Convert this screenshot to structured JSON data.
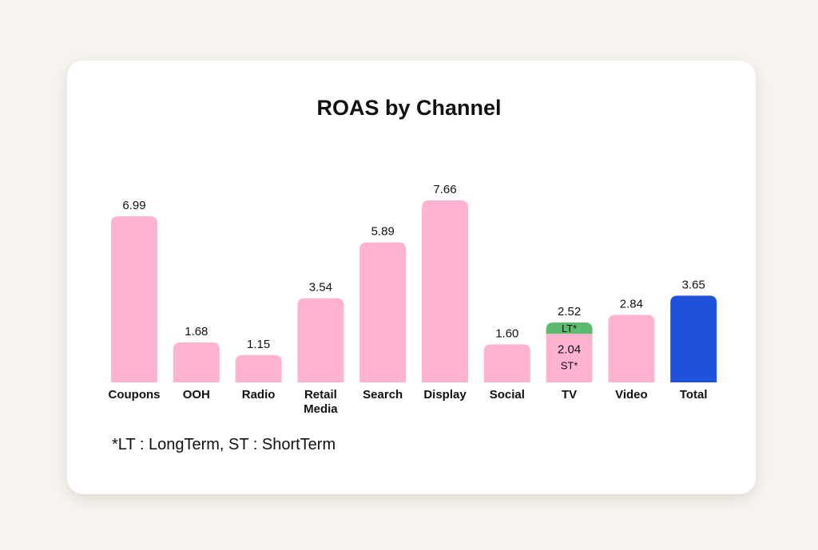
{
  "chart_data": {
    "type": "bar",
    "title": "ROAS by Channel",
    "xlabel": "",
    "ylabel": "",
    "ylim": [
      0,
      7.66
    ],
    "grid": false,
    "categories": [
      {
        "label": [
          "Coupons"
        ],
        "value": 6.99,
        "value_label": "6.99",
        "color": "#ffb3d1"
      },
      {
        "label": [
          "OOH"
        ],
        "value": 1.68,
        "value_label": "1.68",
        "color": "#ffb3d1"
      },
      {
        "label": [
          "Radio"
        ],
        "value": 1.15,
        "value_label": "1.15",
        "color": "#ffb3d1"
      },
      {
        "label": [
          "Retail",
          "Media"
        ],
        "value": 3.54,
        "value_label": "3.54",
        "color": "#ffb3d1"
      },
      {
        "label": [
          "Search"
        ],
        "value": 5.89,
        "value_label": "5.89",
        "color": "#ffb3d1"
      },
      {
        "label": [
          "Display"
        ],
        "value": 7.66,
        "value_label": "7.66",
        "color": "#ffb3d1"
      },
      {
        "label": [
          "Social"
        ],
        "value": 1.6,
        "value_label": "1.60",
        "color": "#ffb3d1"
      },
      {
        "label": [
          "TV"
        ],
        "value": 2.52,
        "value_label": "2.52",
        "color": "#ffb3d1",
        "segments": [
          {
            "label": "ST*",
            "value": 2.04,
            "value_label": "2.04",
            "color": "#ffb3d1"
          },
          {
            "label": "LT*",
            "value": 0.48,
            "color": "#5dbb6f"
          }
        ]
      },
      {
        "label": [
          "Video"
        ],
        "value": 2.84,
        "value_label": "2.84",
        "color": "#ffb3d1"
      },
      {
        "label": [
          "Total"
        ],
        "value": 3.65,
        "value_label": "3.65",
        "color": "#2150d9"
      }
    ]
  },
  "footnote": "*LT : LongTerm, ST : ShortTerm"
}
